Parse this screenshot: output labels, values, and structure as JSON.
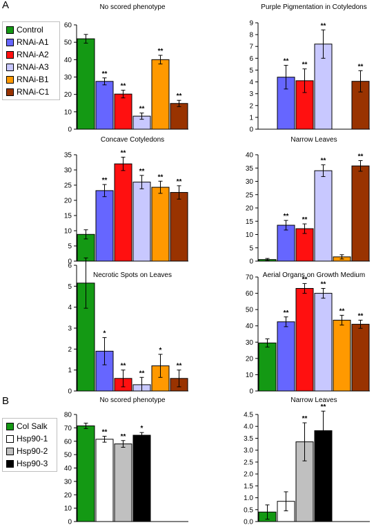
{
  "panel_letters": [
    "A",
    "B"
  ],
  "legend_a": [
    {
      "label": "Control",
      "color": "#149914"
    },
    {
      "label": "RNAi-A1",
      "color": "#6666ff"
    },
    {
      "label": "RNAi-A2",
      "color": "#ff1010"
    },
    {
      "label": "RNAi-A3",
      "color": "#c8c8ff"
    },
    {
      "label": "RNAi-B1",
      "color": "#ff9900"
    },
    {
      "label": "RNAi-C1",
      "color": "#993300"
    }
  ],
  "legend_b": [
    {
      "label": "Col Salk",
      "color": "#149914"
    },
    {
      "label": "Hsp90-1",
      "color": "#ffffff"
    },
    {
      "label": "Hsp90-2",
      "color": "#c0c0c0"
    },
    {
      "label": "Hsp90-3",
      "color": "#000000"
    }
  ],
  "chart_data": [
    {
      "type": "bar",
      "title": "No scored phenotype",
      "categories": [
        "Control",
        "RNAi-A1",
        "RNAi-A2",
        "RNAi-A3",
        "RNAi-B1",
        "RNAi-C1"
      ],
      "values": [
        52,
        27.5,
        20.2,
        7.5,
        40,
        14.8
      ],
      "errors": [
        2.5,
        2,
        2.2,
        1.8,
        2.5,
        1.8
      ],
      "significance": [
        "",
        "**",
        "**",
        "**",
        "**",
        "**"
      ],
      "ylim": [
        0,
        60
      ],
      "yticks": [
        0,
        10,
        20,
        30,
        40,
        50,
        60
      ],
      "colors": [
        "#149914",
        "#6666ff",
        "#ff1010",
        "#c8c8ff",
        "#ff9900",
        "#993300"
      ]
    },
    {
      "type": "bar",
      "title": "Purple Pigmentation in Cotyledons",
      "categories": [
        "Control",
        "RNAi-A1",
        "RNAi-A2",
        "RNAi-A3",
        "RNAi-B1",
        "RNAi-C1"
      ],
      "values": [
        0,
        4.4,
        4.1,
        7.2,
        0,
        4.05
      ],
      "errors": [
        0,
        1,
        1,
        1.2,
        0,
        0.9
      ],
      "significance": [
        "",
        "**",
        "**",
        "**",
        "",
        "**"
      ],
      "ylim": [
        0,
        9
      ],
      "yticks": [
        0,
        1,
        2,
        3,
        4,
        5,
        6,
        7,
        8,
        9
      ],
      "colors": [
        "#149914",
        "#6666ff",
        "#ff1010",
        "#c8c8ff",
        "#ff9900",
        "#993300"
      ]
    },
    {
      "type": "bar",
      "title": "Concave Cotyledons",
      "categories": [
        "Control",
        "RNAi-A1",
        "RNAi-A2",
        "RNAi-A3",
        "RNAi-B1",
        "RNAi-C1"
      ],
      "values": [
        8.8,
        23.2,
        32,
        26,
        24.3,
        22.6
      ],
      "errors": [
        1.5,
        2,
        2.2,
        2.2,
        2,
        2.2
      ],
      "significance": [
        "",
        "**",
        "**",
        "**",
        "**",
        "**"
      ],
      "ylim": [
        0,
        35
      ],
      "yticks": [
        0,
        5,
        10,
        15,
        20,
        25,
        30,
        35
      ],
      "colors": [
        "#149914",
        "#6666ff",
        "#ff1010",
        "#c8c8ff",
        "#ff9900",
        "#993300"
      ]
    },
    {
      "type": "bar",
      "title": "Narrow Leaves",
      "categories": [
        "Control",
        "RNAi-A1",
        "RNAi-A2",
        "RNAi-A3",
        "RNAi-B1",
        "RNAi-C1"
      ],
      "values": [
        0.6,
        13.5,
        12.2,
        34,
        1.6,
        35.8
      ],
      "errors": [
        0.4,
        1.8,
        1.8,
        2.2,
        0.8,
        2
      ],
      "significance": [
        "",
        "**",
        "**",
        "**",
        "",
        "**"
      ],
      "ylim": [
        0,
        40
      ],
      "yticks": [
        0,
        5,
        10,
        15,
        20,
        25,
        30,
        35,
        40
      ],
      "colors": [
        "#149914",
        "#6666ff",
        "#ff1010",
        "#c8c8ff",
        "#ff9900",
        "#993300"
      ]
    },
    {
      "type": "bar",
      "title": "Necrotic Spots on Leaves",
      "categories": [
        "Control",
        "RNAi-A1",
        "RNAi-A2",
        "RNAi-A3",
        "RNAi-B1",
        "RNAi-C1"
      ],
      "values": [
        5.15,
        1.9,
        0.6,
        0.3,
        1.2,
        0.6
      ],
      "errors": [
        1.2,
        0.65,
        0.4,
        0.35,
        0.55,
        0.4
      ],
      "significance": [
        "",
        "*",
        "**",
        "**",
        "*",
        "**"
      ],
      "ylim": [
        0,
        6
      ],
      "yticks": [
        0,
        1,
        2,
        3,
        4,
        5,
        6
      ],
      "colors": [
        "#149914",
        "#6666ff",
        "#ff1010",
        "#c8c8ff",
        "#ff9900",
        "#993300"
      ]
    },
    {
      "type": "bar",
      "title": "Aerial Organs on Growth Medium",
      "categories": [
        "Control",
        "RNAi-A1",
        "RNAi-A2",
        "RNAi-A3",
        "RNAi-B1",
        "RNAi-C1"
      ],
      "values": [
        29.5,
        42.5,
        63,
        60,
        43.5,
        41
      ],
      "errors": [
        2.5,
        3,
        3,
        3,
        3,
        2.5
      ],
      "significance": [
        "",
        "**",
        "**",
        "**",
        "**",
        "**"
      ],
      "ylim": [
        0,
        70
      ],
      "yticks": [
        0,
        10,
        20,
        30,
        40,
        50,
        60,
        70
      ],
      "colors": [
        "#149914",
        "#6666ff",
        "#ff1010",
        "#c8c8ff",
        "#ff9900",
        "#993300"
      ]
    },
    {
      "type": "bar",
      "title": "No scored phenotype",
      "categories": [
        "Col Salk",
        "Hsp90-1",
        "Hsp90-2",
        "Hsp90-3"
      ],
      "values": [
        71.5,
        61.5,
        58,
        64.5
      ],
      "errors": [
        2,
        2.2,
        2.5,
        2
      ],
      "significance": [
        "",
        "**",
        "**",
        "*"
      ],
      "ylim": [
        0,
        80
      ],
      "yticks": [
        0,
        10,
        20,
        30,
        40,
        50,
        60,
        70,
        80
      ],
      "colors": [
        "#149914",
        "#ffffff",
        "#c0c0c0",
        "#000000"
      ]
    },
    {
      "type": "bar",
      "title": "Narrow Leaves",
      "categories": [
        "Col Salk",
        "Hsp90-1",
        "Hsp90-2",
        "Hsp90-3"
      ],
      "values": [
        0.4,
        0.85,
        3.35,
        3.82
      ],
      "errors": [
        0.3,
        0.4,
        0.8,
        0.82
      ],
      "significance": [
        "",
        "",
        "**",
        "**"
      ],
      "ylim": [
        0,
        4.5
      ],
      "yticks": [
        "0.0",
        "0.5",
        "1.0",
        "1.5",
        "2.0",
        "2.5",
        "3.0",
        "3.5",
        "4.0",
        "4.5"
      ],
      "colors": [
        "#149914",
        "#ffffff",
        "#c0c0c0",
        "#000000"
      ]
    }
  ]
}
